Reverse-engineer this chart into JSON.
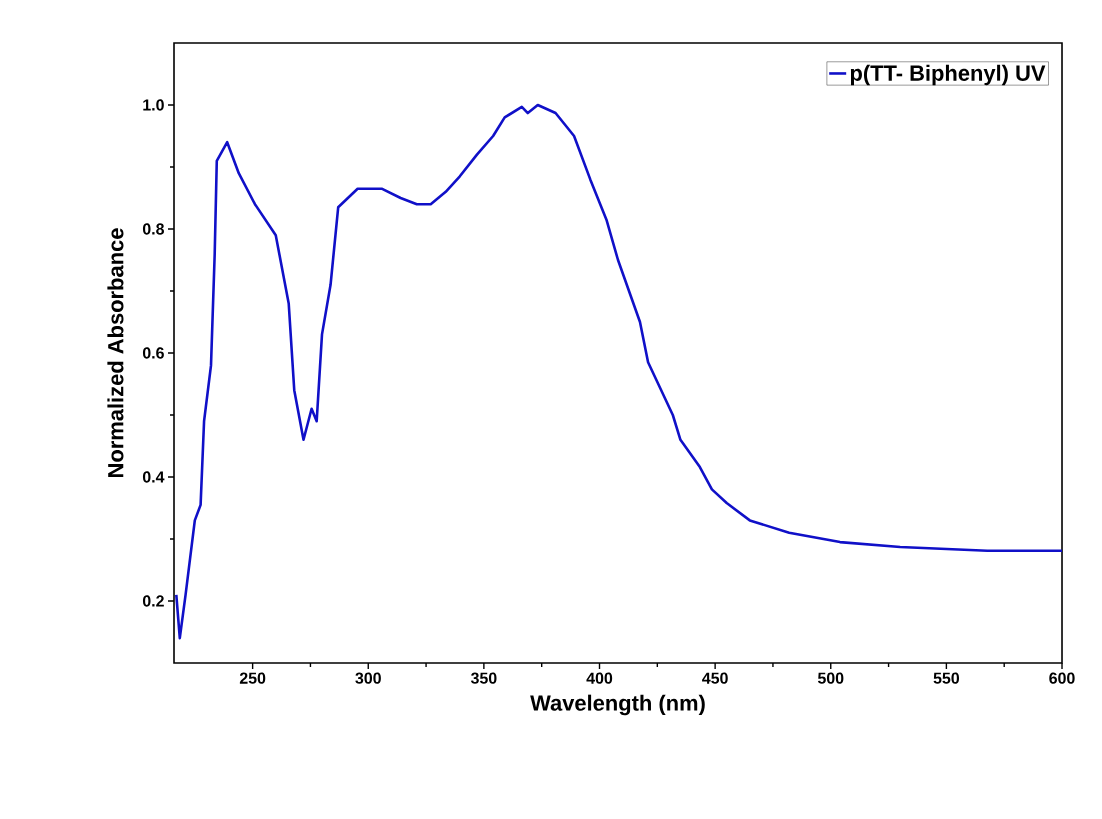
{
  "chart_data": {
    "type": "line",
    "xlabel": "Wavelength (nm)",
    "ylabel": "Normalized Absorbance",
    "xlim": [
      216,
      600
    ],
    "ylim": [
      0.1,
      1.1
    ],
    "xticks": [
      250,
      300,
      350,
      400,
      450,
      500,
      550,
      600
    ],
    "yticks": [
      0.2,
      0.4,
      0.6,
      0.8,
      {
        "value": 1,
        "label": "1.0"
      }
    ],
    "grid": false,
    "legend": "top right",
    "marker": "none",
    "line_style": "solid",
    "series": [
      {
        "name": "p(TT- Biphenyl) UV",
        "color": "#1010c8",
        "x": [
          217,
          218.5,
          221,
          225,
          227.5,
          229,
          232,
          233.6,
          234.5,
          239,
          244,
          251,
          260,
          265.6,
          268,
          272,
          275.5,
          277.7,
          280,
          283.7,
          287,
          295.4,
          305.8,
          314,
          321,
          327,
          333.5,
          339.6,
          347,
          354,
          359,
          366.4,
          369,
          373.3,
          381,
          389,
          396,
          403,
          408,
          417.5,
          421,
          431.7,
          435,
          443.4,
          448.6,
          455,
          465,
          482,
          504,
          530,
          567.7,
          600
        ],
        "values": [
          0.21,
          0.14,
          0.21,
          0.33,
          0.355,
          0.49,
          0.58,
          0.76,
          0.91,
          0.94,
          0.89,
          0.84,
          0.79,
          0.68,
          0.54,
          0.46,
          0.51,
          0.49,
          0.63,
          0.71,
          0.835,
          0.865,
          0.865,
          0.85,
          0.84,
          0.84,
          0.86,
          0.885,
          0.92,
          0.95,
          0.98,
          0.997,
          0.987,
          1.0,
          0.987,
          0.95,
          0.88,
          0.815,
          0.75,
          0.65,
          0.585,
          0.5,
          0.46,
          0.416,
          0.38,
          0.358,
          0.33,
          0.31,
          0.295,
          0.287,
          0.281,
          0.281
        ]
      }
    ]
  }
}
